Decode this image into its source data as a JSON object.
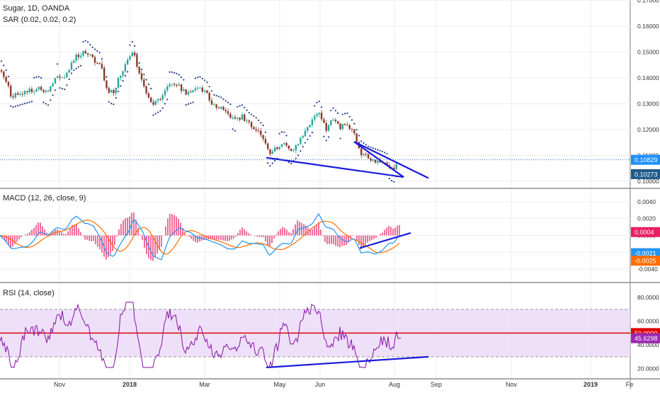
{
  "header": {
    "symbol_line": "Sugar, 1D, OANDA",
    "sar_label": "SAR (0.02, 0.02, 0.2)",
    "macd_label": "MACD (12, 26, close, 9)",
    "rsi_label": "RSI (14, close)"
  },
  "colors": {
    "up_candle": "#26a69a",
    "down_candle": "#8a3a2a",
    "sar_dots": "#1e3a8a",
    "trendline": "#1a1adb",
    "macd_line": "#2196f3",
    "signal_line": "#ff6d00",
    "hist_pos": "#e91e63",
    "rsi_line": "#8e24aa",
    "rsi_band": "#e9d5f7",
    "rsi_midline": "#e00000",
    "price_badge_last": "#1e90ff",
    "price_badge_sar": "#1e5a8a",
    "macd_badge_hist": "#e91e63",
    "macd_badge_macd": "#2196f3",
    "macd_badge_signal": "#ff6d00",
    "rsi_badge_mid": "#e00000",
    "rsi_badge_value": "#9c27b0"
  },
  "chart_data": [
    {
      "type": "candlestick",
      "title": "Sugar, 1D, OANDA",
      "x_labels": [
        "Nov",
        "2018",
        "Mar",
        "May",
        "Jun",
        "Aug",
        "Sep",
        "Nov",
        "2019",
        "Fe"
      ],
      "y_ticks": [
        "0.17000",
        "0.16000",
        "0.15000",
        "0.14000",
        "0.13000",
        "0.12000",
        "0.11000",
        "0.10000"
      ],
      "ylim": [
        0.0975,
        0.1702
      ],
      "last_price_label": "0.10829",
      "sar_value_label": "0.10273",
      "last_price": 0.10829,
      "sar_value": 0.10273,
      "close_path": [
        {
          "x": 0,
          "y": 0.143
        },
        {
          "x": 8,
          "y": 0.139
        },
        {
          "x": 16,
          "y": 0.133
        },
        {
          "x": 28,
          "y": 0.134
        },
        {
          "x": 40,
          "y": 0.135
        },
        {
          "x": 55,
          "y": 0.136
        },
        {
          "x": 68,
          "y": 0.134
        },
        {
          "x": 80,
          "y": 0.141
        },
        {
          "x": 92,
          "y": 0.14
        },
        {
          "x": 102,
          "y": 0.147
        },
        {
          "x": 112,
          "y": 0.149
        },
        {
          "x": 122,
          "y": 0.15
        },
        {
          "x": 132,
          "y": 0.147
        },
        {
          "x": 142,
          "y": 0.145
        },
        {
          "x": 150,
          "y": 0.136
        },
        {
          "x": 160,
          "y": 0.134
        },
        {
          "x": 168,
          "y": 0.14
        },
        {
          "x": 178,
          "y": 0.146
        },
        {
          "x": 188,
          "y": 0.15
        },
        {
          "x": 198,
          "y": 0.14
        },
        {
          "x": 208,
          "y": 0.134
        },
        {
          "x": 216,
          "y": 0.13
        },
        {
          "x": 228,
          "y": 0.132
        },
        {
          "x": 240,
          "y": 0.138
        },
        {
          "x": 252,
          "y": 0.137
        },
        {
          "x": 262,
          "y": 0.134
        },
        {
          "x": 272,
          "y": 0.135
        },
        {
          "x": 282,
          "y": 0.136
        },
        {
          "x": 292,
          "y": 0.134
        },
        {
          "x": 302,
          "y": 0.129
        },
        {
          "x": 312,
          "y": 0.128
        },
        {
          "x": 322,
          "y": 0.126
        },
        {
          "x": 332,
          "y": 0.124
        },
        {
          "x": 342,
          "y": 0.125
        },
        {
          "x": 352,
          "y": 0.122
        },
        {
          "x": 362,
          "y": 0.12
        },
        {
          "x": 372,
          "y": 0.117
        },
        {
          "x": 380,
          "y": 0.11
        },
        {
          "x": 390,
          "y": 0.113
        },
        {
          "x": 400,
          "y": 0.115
        },
        {
          "x": 410,
          "y": 0.111
        },
        {
          "x": 420,
          "y": 0.114
        },
        {
          "x": 430,
          "y": 0.119
        },
        {
          "x": 440,
          "y": 0.123
        },
        {
          "x": 450,
          "y": 0.127
        },
        {
          "x": 460,
          "y": 0.12
        },
        {
          "x": 470,
          "y": 0.124
        },
        {
          "x": 480,
          "y": 0.121
        },
        {
          "x": 490,
          "y": 0.122
        },
        {
          "x": 500,
          "y": 0.118
        },
        {
          "x": 510,
          "y": 0.111
        },
        {
          "x": 520,
          "y": 0.109
        },
        {
          "x": 530,
          "y": 0.108
        },
        {
          "x": 540,
          "y": 0.107
        },
        {
          "x": 548,
          "y": 0.106
        },
        {
          "x": 556,
          "y": 0.104
        },
        {
          "x": 563,
          "y": 0.1083
        }
      ],
      "trendlines": [
        {
          "x1": 376,
          "y1": 0.1091,
          "x2": 570,
          "y2": 0.1016
        },
        {
          "x1": 500,
          "y1": 0.1153,
          "x2": 605,
          "y2": 0.1012
        },
        {
          "x1": 500,
          "y1": 0.1153,
          "x2": 570,
          "y2": 0.1016
        }
      ]
    },
    {
      "type": "line",
      "title": "MACD (12, 26, close, 9)",
      "y_ticks": [
        "0.0040",
        "0.0020",
        "0.0000",
        "-0.0020",
        "-0.0040"
      ],
      "ylim": [
        -0.0055,
        0.0055
      ],
      "hist_value_label": "0.0004",
      "macd_value_label": "-0.0021",
      "signal_value_label": "-0.0025",
      "trendline": {
        "x1": 508,
        "y1": -0.0015,
        "x2": 580,
        "y2": 0.0003
      }
    },
    {
      "type": "line",
      "title": "RSI (14, close)",
      "y_ticks": [
        "80.0000",
        "60.0000",
        "40.0000",
        "20.0000"
      ],
      "ylim": [
        12,
        92
      ],
      "band": [
        30,
        70
      ],
      "midline": 50,
      "mid_value_label": "50.0000",
      "rsi_value_label": "45.6298",
      "rsi_value": 45.6298,
      "trendline": {
        "x1": 376,
        "y1": 21,
        "x2": 605,
        "y2": 30
      }
    }
  ]
}
